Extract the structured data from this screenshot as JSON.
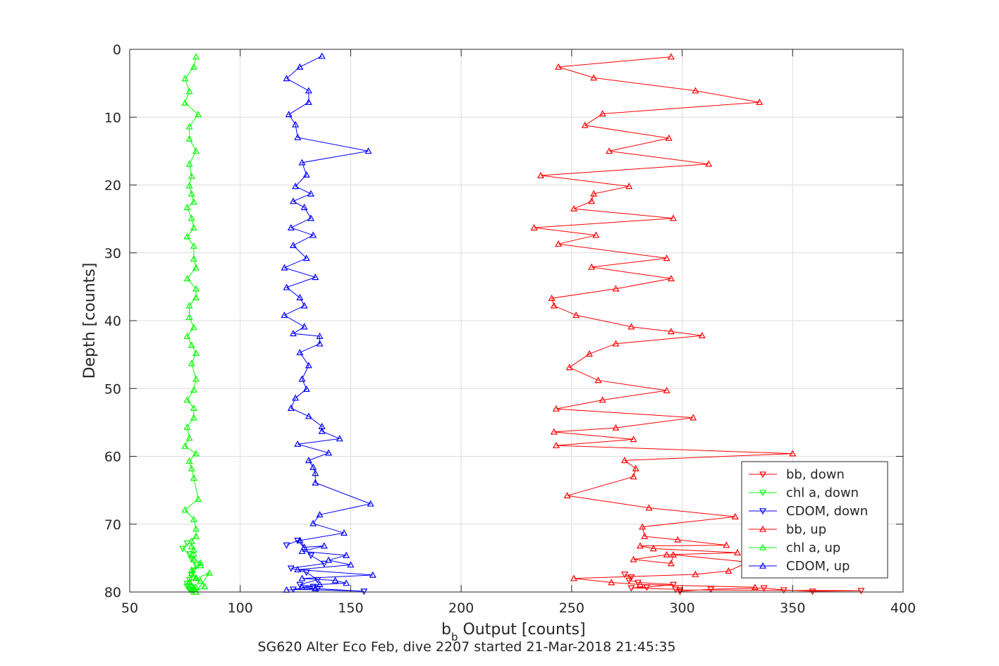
{
  "chart_data": {
    "type": "line",
    "title": "",
    "xlabel_main": "b",
    "xlabel_sub": "b",
    "xlabel_rest": " Output [counts]",
    "ylabel": "Depth [counts]",
    "caption": "SG620 Alter Eco Feb, dive 2207 started 21-Mar-2018 21:45:35",
    "xlim": [
      50,
      400
    ],
    "ylim": [
      0,
      80
    ],
    "y_reversed": true,
    "grid": true,
    "legend_position": "bottom-right inside",
    "x_ticks": [
      50,
      100,
      150,
      200,
      250,
      300,
      350,
      400
    ],
    "y_ticks": [
      0,
      10,
      20,
      30,
      40,
      50,
      60,
      70,
      80
    ],
    "series": [
      {
        "name": "bb, down",
        "color": "#ff0000",
        "marker": "triangle-down",
        "x": [
          274,
          277,
          276,
          280,
          296,
          284,
          277,
          297,
          299,
          381,
          359,
          346,
          337,
          313,
          299
        ],
        "y": [
          77.4,
          77.8,
          78.3,
          78.6,
          78.9,
          79.3,
          79.4,
          79.6,
          79.7,
          79.8,
          79.9,
          79.7,
          79.4,
          79.6,
          79.9
        ]
      },
      {
        "name": "chl a, down",
        "color": "#00ff00",
        "marker": "triangle-down",
        "x": [
          76,
          74,
          77,
          78,
          80,
          79,
          78,
          77,
          76,
          78,
          77,
          79,
          78,
          77,
          76
        ],
        "y": [
          72.8,
          73.6,
          74.4,
          75.2,
          76.0,
          76.8,
          77.5,
          78.2,
          78.8,
          79.3,
          79.6,
          79.8,
          79.9,
          79.6,
          79.2
        ]
      },
      {
        "name": "CDOM, down",
        "color": "#0000ff",
        "marker": "triangle-down",
        "x": [
          121,
          126,
          132,
          138,
          123,
          130,
          135,
          127,
          133,
          124,
          156,
          135
        ],
        "y": [
          73.1,
          72.4,
          74.6,
          75.8,
          76.5,
          77.1,
          78.2,
          78.9,
          79.2,
          79.6,
          79.9,
          79.5
        ]
      },
      {
        "name": "bb, up",
        "color": "#ff0000",
        "marker": "triangle-up",
        "x": [
          295,
          244,
          260,
          306,
          335,
          264,
          256,
          294,
          267,
          312,
          236,
          276,
          260,
          259,
          251,
          296,
          233,
          261,
          244,
          293,
          259,
          295,
          270,
          241,
          242,
          252,
          277,
          295,
          309,
          270,
          258,
          249,
          262,
          293,
          264,
          243,
          305,
          270,
          242,
          278,
          243,
          350,
          274,
          279,
          278,
          248,
          285,
          324,
          282,
          283,
          298,
          320,
          281,
          287,
          325,
          293,
          278,
          295,
          296,
          330,
          321,
          306,
          251,
          268,
          281,
          333
        ],
        "y": [
          1.1,
          2.6,
          4.2,
          6.1,
          7.8,
          9.5,
          11.2,
          13.1,
          15.0,
          16.9,
          18.6,
          20.2,
          21.3,
          22.4,
          23.5,
          24.9,
          26.3,
          27.4,
          28.7,
          30.8,
          32.1,
          33.8,
          35.3,
          36.7,
          37.8,
          39.2,
          40.9,
          41.6,
          42.2,
          43.4,
          44.9,
          46.9,
          48.8,
          50.3,
          51.7,
          53.0,
          54.3,
          55.8,
          56.4,
          57.5,
          58.4,
          59.6,
          60.6,
          61.8,
          63.0,
          65.8,
          67.6,
          68.9,
          70.4,
          71.8,
          72.3,
          73.1,
          73.2,
          73.6,
          74.2,
          74.5,
          75.2,
          75.8,
          74.5,
          75.6,
          76.9,
          77.4,
          78.0,
          78.6,
          78.9,
          79.3
        ]
      },
      {
        "name": "chl a, up",
        "color": "#00ff00",
        "marker": "triangle-up",
        "x": [
          80,
          79,
          75,
          77,
          75,
          81,
          77,
          77,
          80,
          77,
          78,
          77,
          78,
          79,
          76,
          78,
          79,
          76,
          79,
          79,
          80,
          76,
          80,
          80,
          77,
          77,
          79,
          76,
          78,
          80,
          78,
          80,
          79,
          76,
          79,
          79,
          76,
          77,
          75,
          80,
          77,
          78,
          79,
          81,
          75,
          79,
          80,
          80,
          78,
          78,
          79,
          79,
          79,
          82,
          82,
          78,
          78,
          80,
          77,
          78,
          80,
          79,
          80,
          86,
          80,
          82,
          84,
          80
        ],
        "y": [
          1.1,
          2.6,
          4.3,
          6.2,
          7.9,
          9.6,
          11.4,
          13.2,
          15.0,
          16.9,
          18.7,
          20.1,
          21.3,
          22.5,
          23.3,
          24.9,
          26.3,
          27.6,
          29.0,
          30.9,
          32.2,
          33.8,
          35.3,
          36.6,
          37.8,
          39.5,
          41.0,
          42.3,
          43.6,
          44.8,
          46.3,
          48.6,
          50.2,
          51.7,
          52.9,
          54.3,
          55.7,
          57.3,
          58.5,
          59.6,
          60.7,
          61.8,
          63.2,
          66.3,
          67.9,
          69.3,
          70.7,
          71.8,
          72.5,
          73.3,
          73.8,
          74.4,
          75.1,
          75.7,
          76.1,
          76.8,
          77.3,
          77.9,
          78.5,
          79.0,
          79.3,
          79.6,
          80.0,
          77.2,
          78.0,
          78.4,
          79.2,
          80.0
        ]
      },
      {
        "name": "CDOM, up",
        "color": "#0000ff",
        "marker": "triangle-up",
        "x": [
          137,
          127,
          121,
          131,
          131,
          122,
          125,
          126,
          158,
          128,
          130,
          125,
          132,
          124,
          129,
          132,
          123,
          133,
          124,
          130,
          120,
          134,
          121,
          127,
          129,
          120,
          129,
          124,
          136,
          136,
          127,
          131,
          128,
          130,
          125,
          123,
          131,
          137,
          137,
          145,
          126,
          140,
          131,
          133,
          134,
          134,
          159,
          136,
          133,
          147,
          127,
          129,
          138,
          128,
          148,
          140,
          150,
          126,
          160,
          128,
          143,
          148,
          136,
          128,
          134,
          121
        ],
        "y": [
          1.0,
          2.6,
          4.3,
          6.1,
          7.8,
          9.6,
          11.1,
          13.0,
          15.0,
          16.7,
          18.5,
          20.2,
          21.3,
          22.4,
          23.3,
          24.9,
          26.3,
          27.4,
          28.9,
          30.8,
          32.2,
          33.6,
          35.1,
          36.6,
          37.8,
          39.2,
          40.9,
          41.9,
          42.3,
          43.4,
          44.7,
          46.6,
          48.6,
          50.1,
          51.4,
          52.9,
          54.1,
          55.6,
          56.3,
          57.4,
          58.2,
          59.5,
          60.6,
          61.6,
          62.5,
          63.9,
          67.0,
          68.6,
          69.9,
          71.3,
          72.4,
          73.4,
          73.2,
          74.0,
          74.6,
          75.3,
          76.0,
          76.7,
          77.5,
          78.0,
          78.3,
          78.7,
          78.9,
          79.3,
          79.5,
          79.7
        ]
      }
    ]
  }
}
